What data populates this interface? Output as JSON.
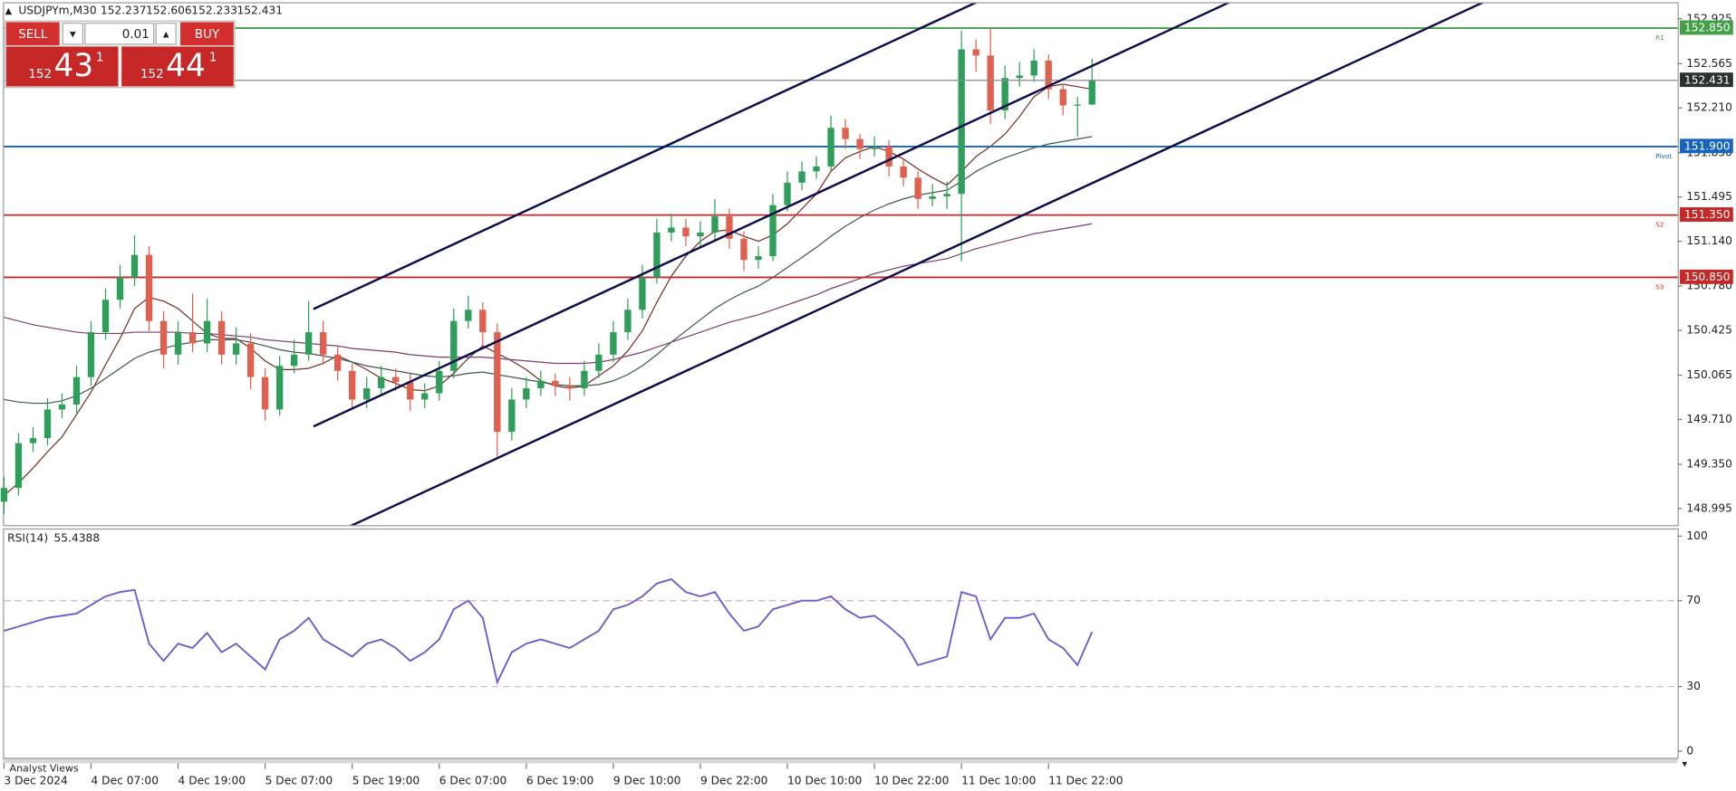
{
  "chart_data": {
    "type": "candlestick",
    "symbol": "USDJPYm,M30",
    "categories": [
      "3 Dec 2024",
      null,
      null,
      null,
      null,
      null,
      "4 Dec 07:00",
      null,
      null,
      null,
      null,
      null,
      "4 Dec 19:00",
      null,
      null,
      null,
      null,
      null,
      "5 Dec 07:00",
      null,
      null,
      null,
      null,
      null,
      "5 Dec 19:00",
      null,
      null,
      null,
      null,
      null,
      "6 Dec 07:00",
      null,
      null,
      null,
      null,
      null,
      "6 Dec 19:00",
      null,
      null,
      null,
      null,
      null,
      "9 Dec 10:00",
      null,
      null,
      null,
      null,
      null,
      "9 Dec 22:00",
      null,
      null,
      null,
      null,
      null,
      "10 Dec 10:00",
      null,
      null,
      null,
      null,
      null,
      "10 Dec 22:00",
      null,
      null,
      null,
      null,
      null,
      "11 Dec 10:00",
      null,
      null,
      null,
      null,
      null,
      "11 Dec 22:00",
      null,
      null,
      null
    ],
    "open": [
      149.05,
      149.16,
      149.52,
      149.56,
      149.79,
      149.83,
      150.05,
      150.41,
      150.67,
      150.85,
      151.03,
      150.5,
      150.23,
      150.41,
      150.32,
      150.5,
      150.23,
      150.32,
      150.05,
      149.79,
      150.14,
      150.23,
      150.41,
      150.23,
      150.1,
      149.87,
      149.96,
      150.05,
      150.01,
      149.87,
      149.92,
      150.1,
      150.5,
      150.59,
      150.41,
      149.61,
      149.87,
      149.96,
      150.02,
      149.98,
      149.96,
      150.1,
      150.23,
      150.41,
      150.59,
      150.85,
      151.21,
      151.25,
      151.18,
      151.21,
      151.34,
      151.16,
      150.99,
      151.02,
      151.43,
      151.61,
      151.7,
      151.74,
      152.05,
      151.96,
      151.88,
      151.9,
      151.74,
      151.65,
      151.48,
      151.5,
      151.52,
      152.68,
      152.63,
      152.19,
      152.45,
      152.47,
      152.59,
      152.36,
      152.23,
      152.237
    ],
    "high": [
      149.25,
      149.6,
      149.65,
      149.88,
      149.92,
      150.14,
      150.5,
      150.76,
      150.95,
      151.19,
      151.1,
      150.58,
      150.5,
      150.72,
      150.68,
      150.58,
      150.45,
      150.4,
      150.12,
      150.22,
      150.35,
      150.66,
      150.5,
      150.3,
      150.16,
      150.05,
      150.14,
      150.12,
      150.08,
      150.0,
      150.18,
      150.6,
      150.7,
      150.65,
      150.48,
      149.96,
      150.05,
      150.1,
      150.08,
      150.05,
      150.18,
      150.32,
      150.5,
      150.68,
      150.95,
      151.32,
      151.36,
      151.32,
      151.3,
      151.48,
      151.4,
      151.22,
      151.1,
      151.52,
      151.7,
      151.78,
      151.82,
      152.15,
      152.12,
      152.0,
      151.98,
      151.95,
      151.8,
      151.7,
      151.6,
      151.62,
      152.83,
      152.76,
      152.85,
      152.55,
      152.58,
      152.68,
      152.64,
      152.4,
      152.3,
      152.606
    ],
    "low": [
      148.95,
      149.1,
      149.45,
      149.5,
      149.72,
      149.76,
      149.98,
      150.35,
      150.6,
      150.78,
      150.42,
      150.12,
      150.15,
      150.25,
      150.25,
      150.15,
      150.15,
      149.95,
      149.7,
      149.74,
      150.08,
      150.18,
      150.15,
      150.02,
      149.8,
      149.8,
      149.9,
      149.94,
      149.78,
      149.8,
      149.86,
      150.04,
      150.44,
      150.3,
      149.41,
      149.54,
      149.8,
      149.9,
      149.9,
      149.86,
      149.9,
      150.04,
      150.17,
      150.35,
      150.52,
      150.8,
      151.14,
      151.1,
      151.1,
      151.15,
      151.08,
      150.9,
      150.92,
      150.98,
      151.38,
      151.55,
      151.64,
      151.7,
      151.88,
      151.8,
      151.82,
      151.66,
      151.58,
      151.4,
      151.42,
      151.4,
      150.98,
      152.5,
      152.08,
      152.12,
      152.38,
      152.42,
      152.28,
      152.15,
      151.98,
      152.233
    ],
    "close": [
      149.16,
      149.52,
      149.56,
      149.79,
      149.83,
      150.05,
      150.41,
      150.67,
      150.85,
      151.03,
      150.5,
      150.23,
      150.41,
      150.32,
      150.5,
      150.23,
      150.32,
      150.05,
      149.79,
      150.14,
      150.23,
      150.41,
      150.23,
      150.1,
      149.87,
      149.96,
      150.05,
      150.01,
      149.87,
      149.92,
      150.1,
      150.5,
      150.59,
      150.41,
      149.61,
      149.87,
      149.96,
      150.02,
      149.98,
      149.96,
      150.1,
      150.23,
      150.41,
      150.59,
      150.85,
      151.21,
      151.25,
      151.18,
      151.21,
      151.34,
      151.16,
      150.99,
      151.02,
      151.43,
      151.61,
      151.7,
      151.74,
      152.05,
      151.96,
      151.88,
      151.9,
      151.74,
      151.65,
      151.48,
      151.5,
      151.52,
      152.68,
      152.63,
      152.19,
      152.45,
      152.47,
      152.59,
      152.36,
      152.23,
      152.237,
      152.431
    ],
    "up_color": "#2e9e5b",
    "down_color": "#e0604f",
    "moving_averages": [
      {
        "color": "#7a2e24",
        "values": [
          149.1,
          149.2,
          149.32,
          149.45,
          149.57,
          149.75,
          149.93,
          150.15,
          150.36,
          150.6,
          150.69,
          150.66,
          150.6,
          150.5,
          150.4,
          150.36,
          150.36,
          150.28,
          150.18,
          150.11,
          150.11,
          150.12,
          150.16,
          150.22,
          150.17,
          150.11,
          150.04,
          150.0,
          149.95,
          149.94,
          149.98,
          150.08,
          150.2,
          150.3,
          150.24,
          150.18,
          150.11,
          150.02,
          149.98,
          149.96,
          149.98,
          150.06,
          150.14,
          150.26,
          150.42,
          150.65,
          150.86,
          151.02,
          151.14,
          151.22,
          151.23,
          151.18,
          151.14,
          151.19,
          151.28,
          151.4,
          151.52,
          151.7,
          151.81,
          151.86,
          151.9,
          151.86,
          151.8,
          151.72,
          151.65,
          151.59,
          151.7,
          151.82,
          151.9,
          152.0,
          152.14,
          152.3,
          152.38,
          152.4,
          152.38,
          152.36
        ]
      },
      {
        "color": "#3f5a4c",
        "values": [
          149.87,
          149.85,
          149.84,
          149.84,
          149.86,
          149.9,
          149.96,
          150.04,
          150.12,
          150.2,
          150.25,
          150.28,
          150.31,
          150.33,
          150.35,
          150.35,
          150.35,
          150.33,
          150.3,
          150.27,
          150.25,
          150.24,
          150.22,
          150.2,
          150.17,
          150.14,
          150.12,
          150.1,
          150.08,
          150.06,
          150.05,
          150.06,
          150.08,
          150.09,
          150.07,
          150.05,
          150.03,
          150.01,
          149.99,
          149.98,
          149.98,
          149.99,
          150.02,
          150.07,
          150.14,
          150.23,
          150.33,
          150.42,
          150.51,
          150.6,
          150.67,
          150.73,
          150.78,
          150.85,
          150.93,
          151.01,
          151.09,
          151.18,
          151.26,
          151.33,
          151.39,
          151.44,
          151.48,
          151.51,
          151.53,
          151.55,
          151.62,
          151.7,
          151.76,
          151.81,
          151.85,
          151.89,
          151.92,
          151.94,
          151.96,
          151.98
        ]
      },
      {
        "color": "#7b3f6e",
        "values": [
          150.53,
          150.5,
          150.47,
          150.45,
          150.43,
          150.41,
          150.4,
          150.4,
          150.4,
          150.41,
          150.41,
          150.41,
          150.41,
          150.4,
          150.4,
          150.39,
          150.38,
          150.37,
          150.35,
          150.34,
          150.33,
          150.32,
          150.31,
          150.3,
          150.28,
          150.27,
          150.26,
          150.25,
          150.23,
          150.22,
          150.21,
          150.21,
          150.21,
          150.21,
          150.2,
          150.19,
          150.18,
          150.17,
          150.16,
          150.16,
          150.16,
          150.17,
          150.19,
          150.22,
          150.25,
          150.29,
          150.33,
          150.37,
          150.41,
          150.45,
          150.49,
          150.52,
          150.55,
          150.59,
          150.63,
          150.67,
          150.71,
          150.76,
          150.8,
          150.84,
          150.88,
          150.91,
          150.94,
          150.96,
          150.98,
          151.0,
          151.04,
          151.08,
          151.11,
          151.14,
          151.17,
          151.2,
          151.22,
          151.24,
          151.26,
          151.28
        ]
      }
    ],
    "levels": [
      {
        "name": "R1",
        "value": 152.85,
        "label": "152.850",
        "color": "#43a047"
      },
      {
        "name": "Pivot",
        "value": 151.9,
        "label": "151.900",
        "color": "#1565c0"
      },
      {
        "name": "S2",
        "value": 151.35,
        "label": "151.350",
        "color": "#c62828"
      },
      {
        "name": "S3",
        "value": 150.85,
        "label": "150.850",
        "color": "#c62828"
      }
    ],
    "ylim": [
      148.862,
      153.058
    ],
    "yticks": [
      152.925,
      152.565,
      {
        "value": 152.21,
        "label": "152.210"
      },
      {
        "value": 151.85,
        "label": "151.850"
      },
      151.495,
      {
        "value": 151.14,
        "label": "151.140"
      },
      {
        "value": 150.78,
        "label": "150.780"
      },
      150.425,
      150.065,
      {
        "value": 149.71,
        "label": "149.710"
      },
      {
        "value": 149.35,
        "label": "149.350"
      },
      148.995
    ],
    "rsi": {
      "title": "RSI(14)",
      "color": "#6a5acd",
      "values": [
        56,
        58,
        60,
        62,
        63,
        64,
        68,
        72,
        74,
        75,
        50,
        42,
        50,
        48,
        55,
        46,
        50,
        44,
        38,
        52,
        56,
        62,
        52,
        48,
        44,
        50,
        52,
        48,
        42,
        46,
        52,
        66,
        70,
        62,
        32,
        46,
        50,
        52,
        50,
        48,
        52,
        56,
        66,
        68,
        72,
        78,
        80,
        74,
        72,
        74,
        64,
        56,
        58,
        66,
        68,
        70,
        70,
        72,
        66,
        62,
        63,
        58,
        52,
        40,
        42,
        44,
        74,
        72,
        52,
        62,
        62,
        64,
        52,
        48,
        40,
        55.4388
      ],
      "ylim": [
        0,
        100
      ],
      "yticks": [
        100,
        70,
        30,
        0
      ]
    }
  },
  "trade_panel": {
    "sell": "SELL",
    "buy": "BUY",
    "volume": "0.01",
    "bid": {
      "big": "152",
      "main": "43",
      "small": "1"
    },
    "ask": {
      "big": "152",
      "main": "44",
      "small": "1"
    }
  },
  "footer": {
    "panel": "Analyst Views"
  }
}
